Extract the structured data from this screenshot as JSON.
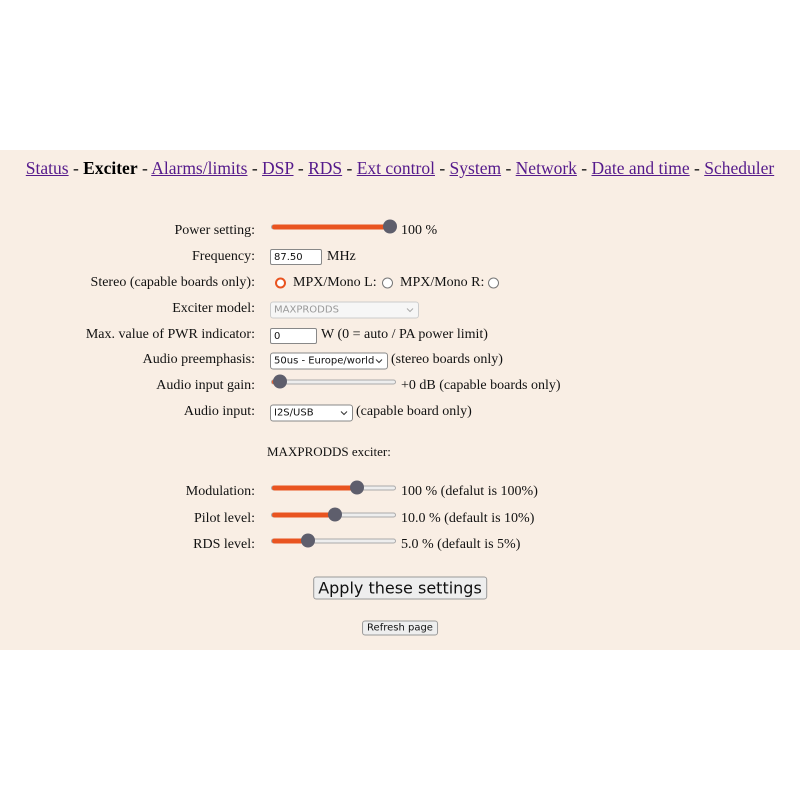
{
  "nav": {
    "items": [
      "Status",
      "Exciter",
      "Alarms/limits",
      "DSP",
      "RDS",
      "Ext control",
      "System",
      "Network",
      "Date and time",
      "Scheduler"
    ],
    "separator": "-"
  },
  "form": {
    "power": {
      "label": "Power setting:",
      "text": "100 %"
    },
    "frequency": {
      "label": "Frequency:",
      "input": "87.50",
      "unit": "MHz"
    },
    "stereo": {
      "label": "Stereo (capable boards only):",
      "option_l": "MPX/Mono L:",
      "option_r": "MPX/Mono R:"
    },
    "model": {
      "label": "Exciter model:",
      "select": "MAXPRODDS"
    },
    "pwr": {
      "label": "Max. value of PWR indicator:",
      "input": "0",
      "unit": "W (0 = auto / PA power limit)"
    },
    "preemphasis": {
      "label": "Audio preemphasis:",
      "select": "50us - Europe/world",
      "note": "(stereo boards only)"
    },
    "gain": {
      "label": "Audio input gain:",
      "text": "+0 dB (capable boards only)"
    },
    "input": {
      "label": "Audio input:",
      "select": "I2S/USB",
      "note": "(capable board only)"
    },
    "section": "MAXPRODDS exciter:",
    "modulation": {
      "label": "Modulation:",
      "text": "100 % (defalut is 100%)"
    },
    "pilot": {
      "label": "Pilot level:",
      "text": "10.0 % (default is 10%)"
    },
    "rds": {
      "label": "RDS level:",
      "text": "5.0 % (default is 5%)"
    },
    "apply": "Apply these settings",
    "refresh": "Refresh page"
  }
}
